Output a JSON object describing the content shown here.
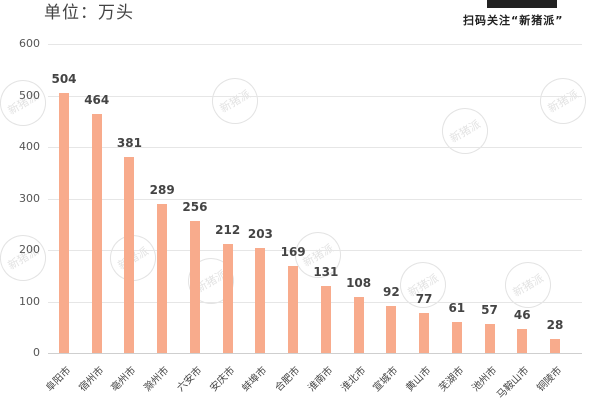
{
  "header": {
    "unit_label": "单位：万头",
    "promo_text": "扫码关注“新猪派”",
    "watermark": "新猪派"
  },
  "chart_data": {
    "type": "bar",
    "title": "",
    "xlabel": "",
    "ylabel": "单位：万头",
    "ylim": [
      0,
      600
    ],
    "yticks": [
      0,
      100,
      200,
      300,
      400,
      500,
      600
    ],
    "grid": true,
    "legend": "none",
    "color": "#f8ab8c",
    "categories": [
      "阜阳市",
      "宿州市",
      "亳州市",
      "滁州市",
      "六安市",
      "安庆市",
      "蚌埠市",
      "合肥市",
      "淮南市",
      "淮北市",
      "宣城市",
      "黄山市",
      "芜湖市",
      "池州市",
      "马鞍山市",
      "铜陵市"
    ],
    "values": [
      504,
      464,
      381,
      289,
      256,
      212,
      203,
      169,
      131,
      108,
      92,
      77,
      61,
      57,
      46,
      28
    ]
  }
}
